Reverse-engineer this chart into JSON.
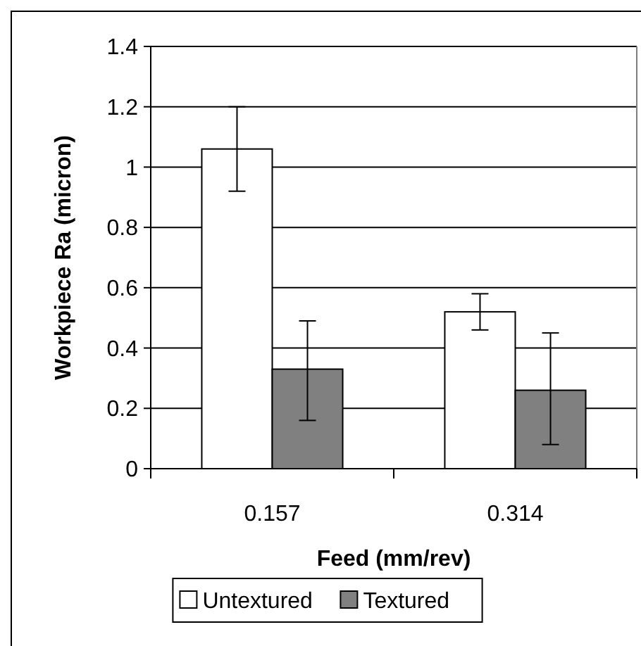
{
  "chart_data": {
    "type": "bar",
    "xlabel": "Feed (mm/rev)",
    "ylabel": "Workpiece Ra (micron)",
    "categories": [
      "0.157",
      "0.314"
    ],
    "series": [
      {
        "name": "Untextured",
        "color": "#ffffff",
        "values": [
          1.06,
          0.52
        ],
        "errors": [
          [
            0.92,
            1.2
          ],
          [
            0.46,
            0.58
          ]
        ]
      },
      {
        "name": "Textured",
        "color": "#808080",
        "values": [
          0.33,
          0.26
        ],
        "errors": [
          [
            0.16,
            0.49
          ],
          [
            0.08,
            0.45
          ]
        ]
      }
    ],
    "ylim": [
      0,
      1.4
    ],
    "yticks": [
      "0",
      0.2,
      0.4,
      0.6,
      0.8,
      "1",
      1.2,
      1.4
    ],
    "grid": "y",
    "legend": "bottom"
  }
}
